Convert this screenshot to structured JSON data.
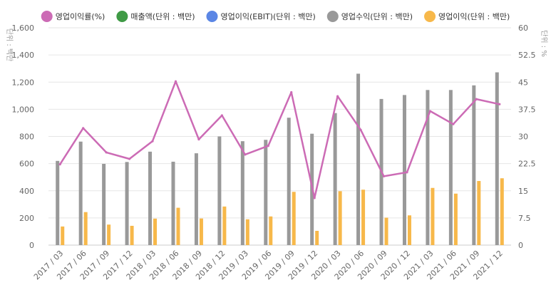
{
  "chart_data": {
    "type": "bar",
    "categories": [
      "2017 / 03",
      "2017 / 06",
      "2017 / 09",
      "2017 / 12",
      "2018 / 03",
      "2018 / 06",
      "2018 / 09",
      "2018 / 12",
      "2019 / 03",
      "2019 / 06",
      "2019 / 09",
      "2019 / 12",
      "2020 / 03",
      "2020 / 06",
      "2020 / 09",
      "2020 / 12",
      "2021 / 03",
      "2021 / 06",
      "2021 / 09",
      "2021 / 12"
    ],
    "legend": [
      {
        "name": "영업이익률(%)",
        "color": "#cc6bb5"
      },
      {
        "name": "매출액(단위 : 백만)",
        "color": "#3f9a45"
      },
      {
        "name": "영업이익(EBIT)(단위 : 백만)",
        "color": "#5b86e5"
      },
      {
        "name": "영업수익(단위 : 백만)",
        "color": "#999999"
      },
      {
        "name": "영업이익(단위 : 백만)",
        "color": "#f7b84a"
      }
    ],
    "series": [
      {
        "name": "영업수익(단위 : 백만)",
        "type": "bar",
        "axis": "left",
        "color": "#999999",
        "values": [
          620,
          762,
          598,
          612,
          688,
          614,
          676,
          800,
          765,
          775,
          938,
          820,
          972,
          1262,
          1076,
          1105,
          1142,
          1142,
          1176,
          1272
        ]
      },
      {
        "name": "영업이익(단위 : 백만)",
        "type": "bar",
        "axis": "left",
        "color": "#f7b84a",
        "values": [
          137,
          243,
          151,
          142,
          195,
          275,
          196,
          284,
          190,
          211,
          392,
          105,
          397,
          408,
          202,
          219,
          421,
          379,
          472,
          492
        ]
      },
      {
        "name": "영업이익률(%)",
        "type": "line",
        "axis": "right",
        "color": "#cc6bb5",
        "values": [
          22.3,
          32.3,
          25.6,
          23.8,
          28.7,
          45.2,
          29.2,
          35.8,
          25.0,
          27.4,
          42.2,
          13.0,
          41.1,
          31.8,
          19.0,
          20.1,
          37.0,
          33.4,
          40.3,
          38.9
        ]
      }
    ],
    "y_left": {
      "label": "단위 : 백만",
      "ylim": [
        0,
        1600
      ],
      "ticks": [
        "0",
        "200",
        "400",
        "600",
        "800",
        "1,000",
        "1,200",
        "1,400",
        "1,600"
      ]
    },
    "y_right": {
      "label": "단위 : %",
      "ylim": [
        0,
        60
      ],
      "ticks": [
        "0",
        "7.5",
        "15",
        "22.5",
        "30",
        "37.5",
        "45",
        "52.5",
        "60"
      ]
    },
    "grid": true,
    "legend_position": "top"
  }
}
